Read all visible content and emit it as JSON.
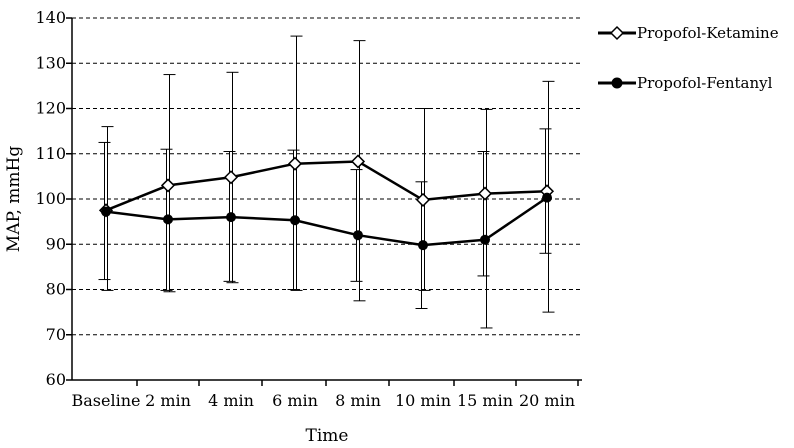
{
  "chart_data": {
    "type": "line",
    "title": "",
    "xlabel": "Time",
    "ylabel": "MAP, mmHg",
    "ylim": [
      60,
      140
    ],
    "yticks": [
      60,
      70,
      80,
      90,
      100,
      110,
      120,
      130,
      140
    ],
    "grid": "horizontal dashed",
    "legend_position": "right",
    "categories": [
      "Baseline",
      "2 min",
      "4 min",
      "6 min",
      "8 min",
      "10 min",
      "15 min",
      "20 min"
    ],
    "series": [
      {
        "name": "Propofol-Ketamine",
        "marker": "open-diamond",
        "color": "#000000",
        "values": [
          97.5,
          103,
          104.8,
          107.8,
          108.3,
          99.8,
          101.2,
          101.7
        ],
        "error_low": [
          79.8,
          79.5,
          81.5,
          79.8,
          77.5,
          79.8,
          71.5,
          75
        ],
        "error_high": [
          116,
          127.5,
          128,
          136,
          135,
          120,
          119.8,
          126
        ]
      },
      {
        "name": "Propofol-Fentanyl",
        "marker": "filled-circle",
        "color": "#000000",
        "values": [
          97.2,
          95.5,
          96,
          95.3,
          92,
          89.8,
          91,
          100.3
        ],
        "error_low": [
          82.2,
          79.8,
          81.8,
          80,
          81.8,
          75.8,
          83,
          88
        ],
        "error_high": [
          112.5,
          111,
          110.5,
          110.8,
          106.5,
          103.8,
          110.5,
          115.5
        ]
      }
    ]
  }
}
